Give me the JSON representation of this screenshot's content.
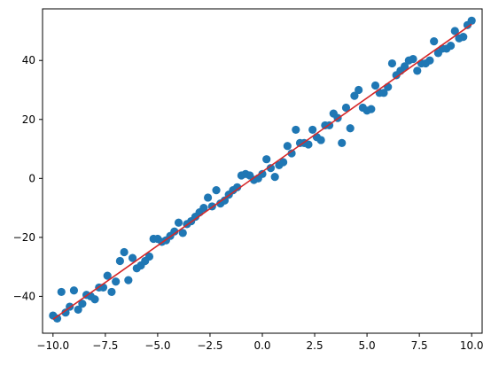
{
  "chart_data": {
    "type": "scatter",
    "title": "",
    "xlabel": "",
    "ylabel": "",
    "xlim": [
      -10.5,
      10.5
    ],
    "ylim": [
      -52.5,
      57.5
    ],
    "grid": false,
    "legend": "none",
    "x_ticks": [
      -10.0,
      -7.5,
      -5.0,
      -2.5,
      0.0,
      2.5,
      5.0,
      7.5,
      10.0
    ],
    "x_tick_labels": [
      "−10.0",
      "−7.5",
      "−5.0",
      "−2.5",
      "0.0",
      "2.5",
      "5.0",
      "7.5",
      "10.0"
    ],
    "y_ticks": [
      -40,
      -20,
      0,
      20,
      40
    ],
    "y_tick_labels": [
      "−40",
      "−20",
      "0",
      "20",
      "40"
    ],
    "series": [
      {
        "type": "scatter",
        "color": "#1f77b4",
        "x": [
          -10.0,
          -9.8,
          -9.6,
          -9.4,
          -9.2,
          -9.0,
          -8.8,
          -8.6,
          -8.4,
          -8.2,
          -8.0,
          -7.8,
          -7.6,
          -7.4,
          -7.2,
          -7.0,
          -6.8,
          -6.6,
          -6.4,
          -6.2,
          -6.0,
          -5.8,
          -5.6,
          -5.4,
          -5.2,
          -5.0,
          -4.8,
          -4.6,
          -4.4,
          -4.2,
          -4.0,
          -3.8,
          -3.6,
          -3.4,
          -3.2,
          -3.0,
          -2.8,
          -2.6,
          -2.4,
          -2.2,
          -2.0,
          -1.8,
          -1.6,
          -1.4,
          -1.2,
          -1.0,
          -0.8,
          -0.6,
          -0.4,
          -0.2,
          0.0,
          0.2,
          0.4,
          0.6,
          0.8,
          1.0,
          1.2,
          1.4,
          1.6,
          1.8,
          2.0,
          2.2,
          2.4,
          2.6,
          2.8,
          3.0,
          3.2,
          3.4,
          3.6,
          3.8,
          4.0,
          4.2,
          4.4,
          4.6,
          4.8,
          5.0,
          5.2,
          5.4,
          5.6,
          5.8,
          6.0,
          6.2,
          6.4,
          6.6,
          6.8,
          7.0,
          7.2,
          7.4,
          7.6,
          7.8,
          8.0,
          8.2,
          8.4,
          8.6,
          8.8,
          9.0,
          9.2,
          9.4,
          9.6,
          9.8,
          10.0
        ],
        "y": [
          -46.5,
          -47.5,
          -38.5,
          -45.5,
          -43.5,
          -38.0,
          -44.5,
          -42.5,
          -39.5,
          -40.0,
          -41.0,
          -37.0,
          -37.0,
          -33.0,
          -38.5,
          -35.0,
          -28.0,
          -25.0,
          -34.5,
          -27.0,
          -30.5,
          -29.5,
          -28.0,
          -26.5,
          -20.5,
          -20.5,
          -21.5,
          -21.0,
          -19.5,
          -18.0,
          -15.0,
          -18.5,
          -15.5,
          -14.5,
          -13.0,
          -11.5,
          -10.0,
          -6.5,
          -9.5,
          -4.0,
          -8.5,
          -7.5,
          -5.5,
          -4.0,
          -3.0,
          1.0,
          1.5,
          1.0,
          -0.5,
          0.0,
          1.5,
          6.5,
          3.5,
          0.5,
          4.5,
          5.5,
          11.0,
          8.5,
          16.5,
          12.0,
          12.0,
          11.5,
          16.5,
          14.0,
          13.0,
          18.0,
          18.0,
          22.0,
          20.5,
          12.0,
          24.0,
          17.0,
          28.0,
          30.0,
          24.0,
          23.0,
          23.5,
          31.5,
          29.0,
          29.0,
          31.0,
          39.0,
          35.0,
          36.5,
          38.0,
          40.0,
          40.5,
          36.5,
          39.0,
          39.0,
          40.0,
          46.5,
          42.5,
          44.0,
          44.0,
          45.0,
          50.0,
          47.5,
          48.0,
          52.0,
          53.5
        ]
      },
      {
        "type": "line",
        "color": "#d62728",
        "x": [
          -10.0,
          10.0
        ],
        "y": [
          -47.8,
          52.3
        ]
      }
    ]
  }
}
